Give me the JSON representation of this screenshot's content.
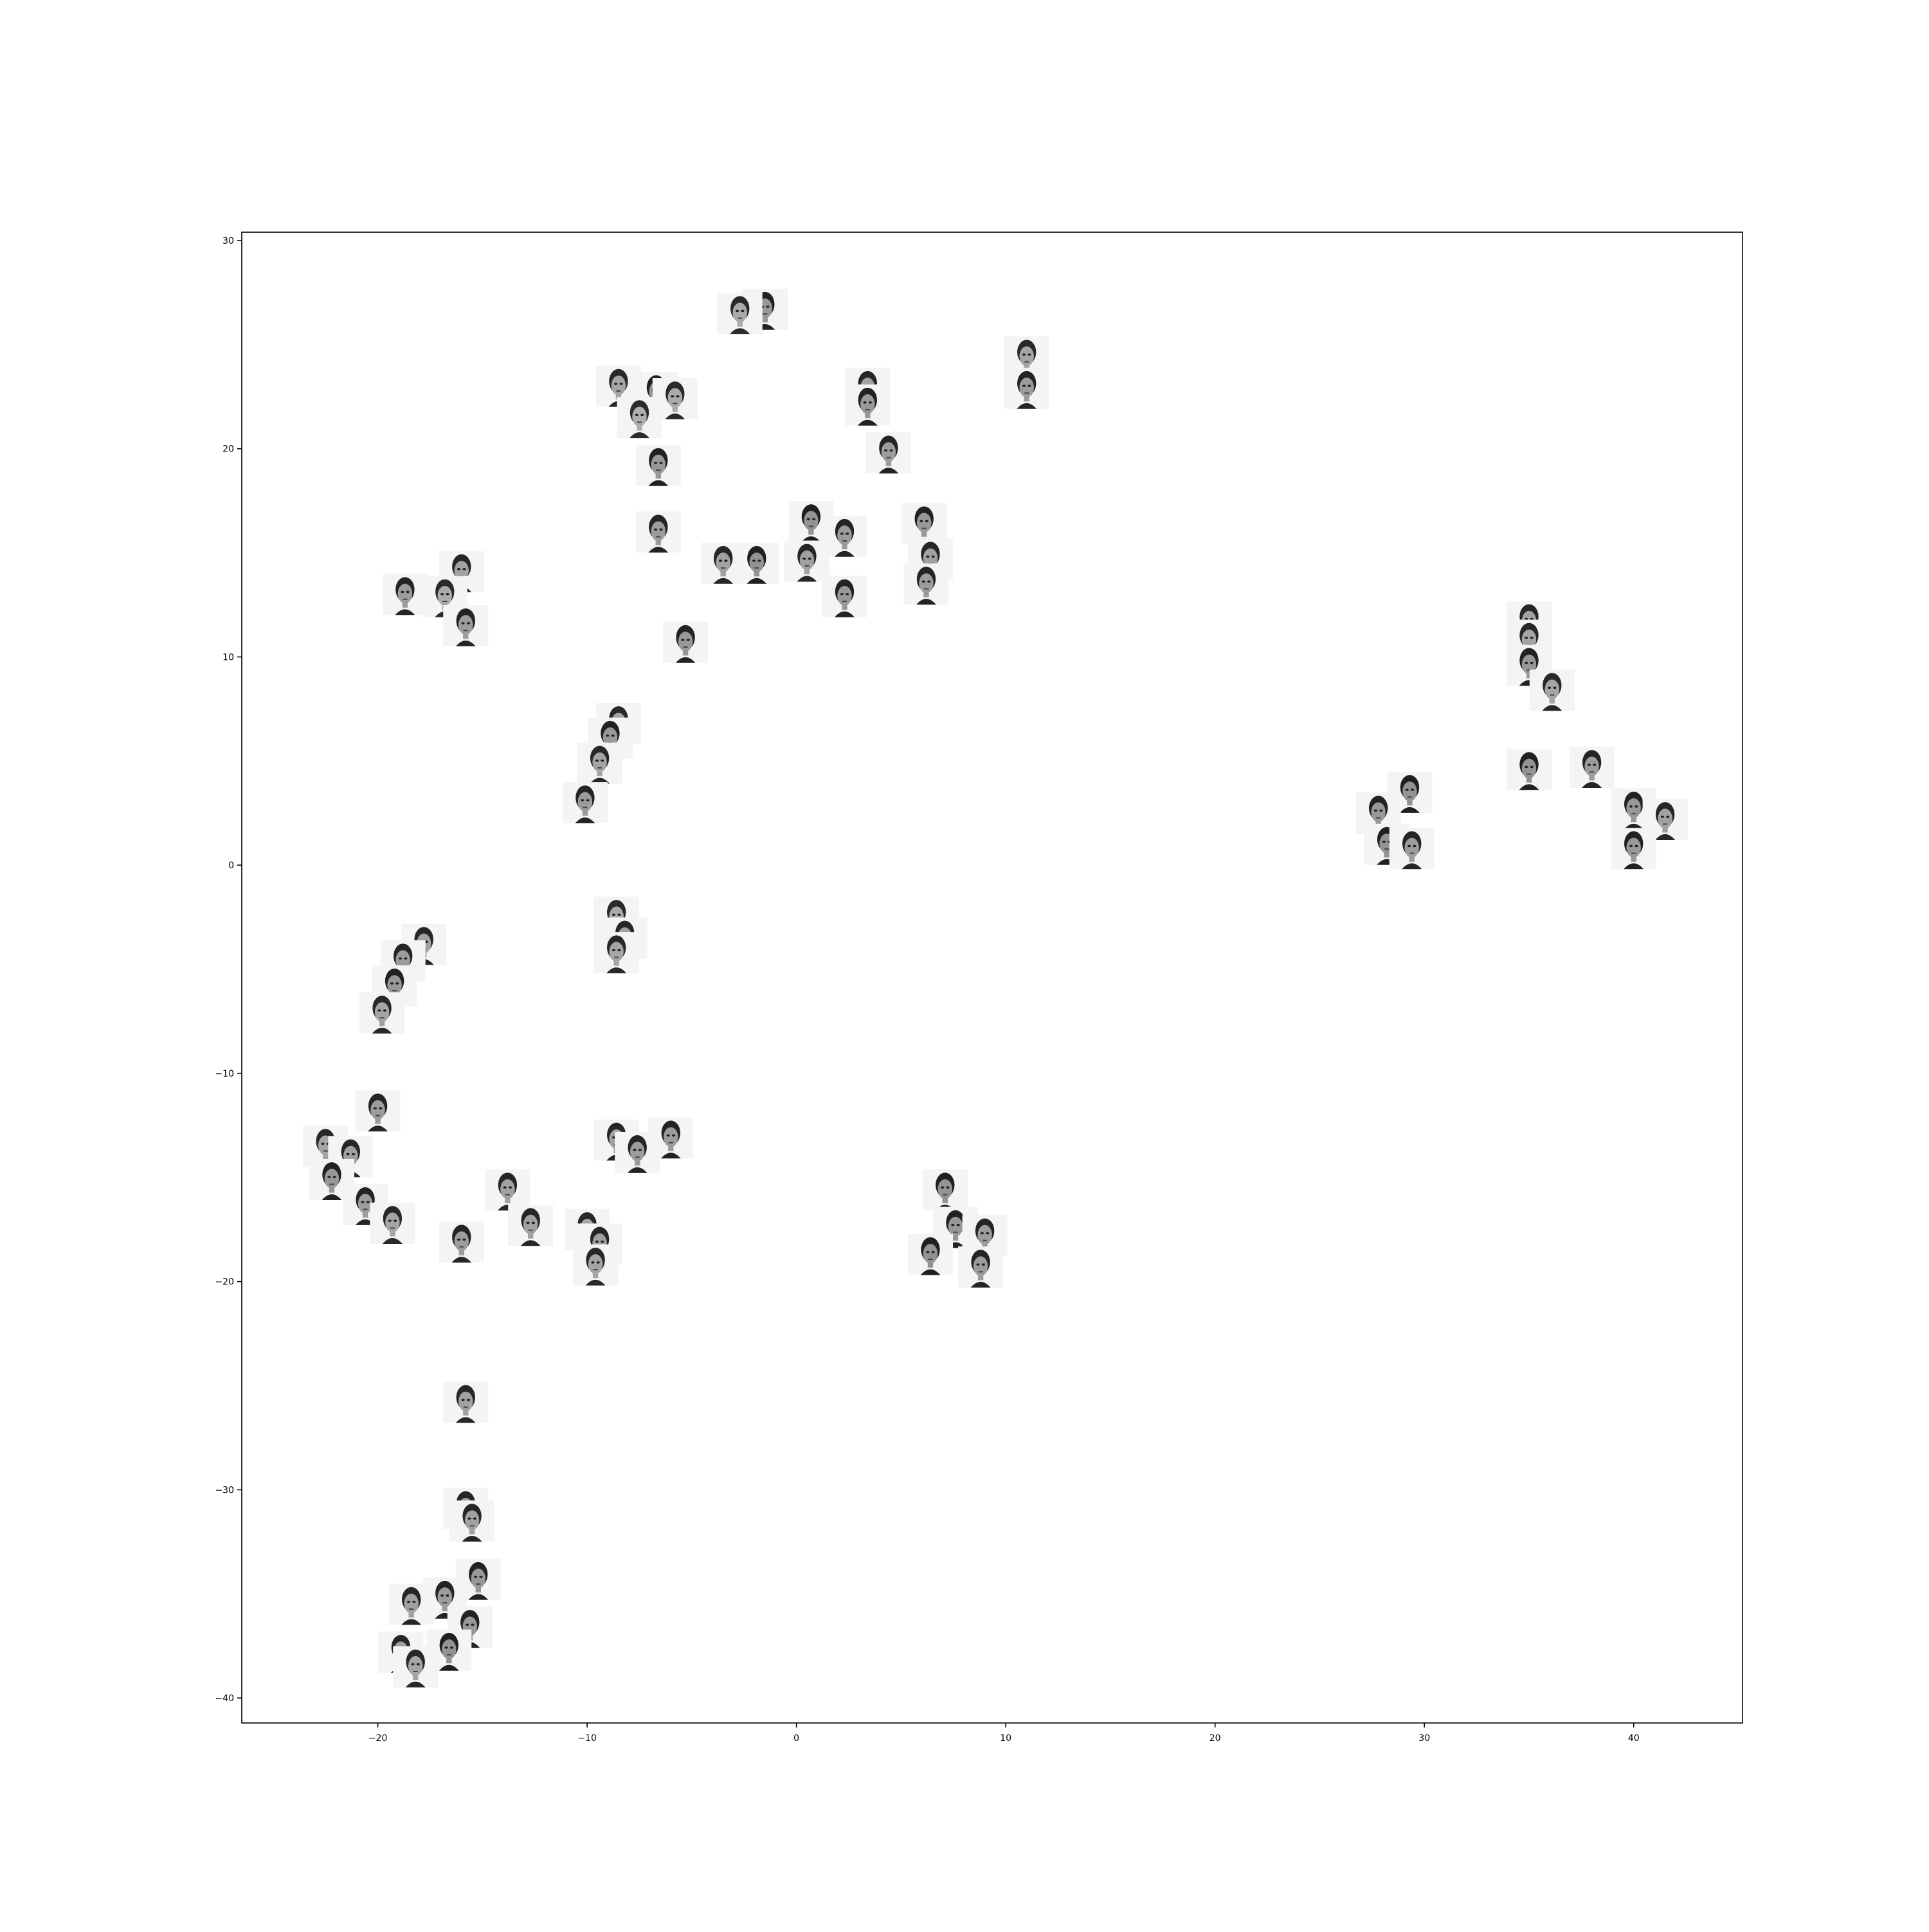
{
  "chart_data": {
    "type": "scatter",
    "marker": "face-thumbnail-image",
    "title": "",
    "xlabel": "",
    "ylabel": "",
    "xlim": [
      -26.5,
      45.2
    ],
    "ylim": [
      -41.2,
      30.4
    ],
    "xticks": [
      -20,
      -10,
      0,
      10,
      20,
      30,
      40
    ],
    "yticks": [
      -40,
      -30,
      -20,
      -10,
      0,
      10,
      20,
      30
    ],
    "xtick_labels": [
      "−20",
      "−10",
      "0",
      "10",
      "20",
      "30",
      "40"
    ],
    "ytick_labels": [
      "−40",
      "−30",
      "−20",
      "−10",
      "0",
      "10",
      "20",
      "30"
    ],
    "grid": false,
    "legend": "none",
    "points": [
      {
        "x": -1.5,
        "y": 26.7,
        "tone": 0.35
      },
      {
        "x": -2.7,
        "y": 26.5,
        "tone": 0.55
      },
      {
        "x": 11.0,
        "y": 24.4,
        "tone": 0.5
      },
      {
        "x": 11.0,
        "y": 22.9,
        "tone": 0.4
      },
      {
        "x": -8.5,
        "y": 23.0,
        "tone": 0.5
      },
      {
        "x": -6.7,
        "y": 22.7,
        "tone": 0.3
      },
      {
        "x": -5.8,
        "y": 22.4,
        "tone": 0.55
      },
      {
        "x": -7.5,
        "y": 21.5,
        "tone": 0.6
      },
      {
        "x": -6.6,
        "y": 19.2,
        "tone": 0.35
      },
      {
        "x": 3.4,
        "y": 22.9,
        "tone": 0.45
      },
      {
        "x": 3.4,
        "y": 22.1,
        "tone": 0.35
      },
      {
        "x": 4.4,
        "y": 19.8,
        "tone": 0.4
      },
      {
        "x": -6.6,
        "y": 16.0,
        "tone": 0.4
      },
      {
        "x": -3.5,
        "y": 14.5,
        "tone": 0.45
      },
      {
        "x": -1.9,
        "y": 14.5,
        "tone": 0.3
      },
      {
        "x": 0.7,
        "y": 16.5,
        "tone": 0.3
      },
      {
        "x": 2.3,
        "y": 15.8,
        "tone": 0.4
      },
      {
        "x": 0.5,
        "y": 14.6,
        "tone": 0.45
      },
      {
        "x": 2.3,
        "y": 12.9,
        "tone": 0.35
      },
      {
        "x": 6.1,
        "y": 16.4,
        "tone": 0.35
      },
      {
        "x": 6.4,
        "y": 14.7,
        "tone": 0.45
      },
      {
        "x": 6.2,
        "y": 13.5,
        "tone": 0.4
      },
      {
        "x": -16.0,
        "y": 14.1,
        "tone": 0.45
      },
      {
        "x": -18.7,
        "y": 13.0,
        "tone": 0.4
      },
      {
        "x": -16.8,
        "y": 12.9,
        "tone": 0.55
      },
      {
        "x": -15.8,
        "y": 11.5,
        "tone": 0.4
      },
      {
        "x": -5.3,
        "y": 10.7,
        "tone": 0.35
      },
      {
        "x": -8.5,
        "y": 6.8,
        "tone": 0.5
      },
      {
        "x": -8.9,
        "y": 6.1,
        "tone": 0.35
      },
      {
        "x": -9.4,
        "y": 4.9,
        "tone": 0.5
      },
      {
        "x": -10.1,
        "y": 3.0,
        "tone": 0.4
      },
      {
        "x": 35.0,
        "y": 11.7,
        "tone": 0.45
      },
      {
        "x": 35.0,
        "y": 10.8,
        "tone": 0.5
      },
      {
        "x": 35.0,
        "y": 9.6,
        "tone": 0.35
      },
      {
        "x": 36.1,
        "y": 8.4,
        "tone": 0.5
      },
      {
        "x": 35.0,
        "y": 4.6,
        "tone": 0.3
      },
      {
        "x": 38.0,
        "y": 4.7,
        "tone": 0.4
      },
      {
        "x": 40.0,
        "y": 2.7,
        "tone": 0.35
      },
      {
        "x": 41.5,
        "y": 2.2,
        "tone": 0.45
      },
      {
        "x": 40.0,
        "y": 0.8,
        "tone": 0.35
      },
      {
        "x": 29.3,
        "y": 3.5,
        "tone": 0.3
      },
      {
        "x": 27.8,
        "y": 2.5,
        "tone": 0.35
      },
      {
        "x": 28.2,
        "y": 1.0,
        "tone": 0.3
      },
      {
        "x": 29.4,
        "y": 0.8,
        "tone": 0.4
      },
      {
        "x": -8.6,
        "y": -2.5,
        "tone": 0.55
      },
      {
        "x": -8.2,
        "y": -3.5,
        "tone": 0.45
      },
      {
        "x": -8.6,
        "y": -4.2,
        "tone": 0.5
      },
      {
        "x": -17.8,
        "y": -3.8,
        "tone": 0.45
      },
      {
        "x": -18.8,
        "y": -4.6,
        "tone": 0.4
      },
      {
        "x": -19.2,
        "y": -5.8,
        "tone": 0.35
      },
      {
        "x": -19.8,
        "y": -7.1,
        "tone": 0.5
      },
      {
        "x": -20.0,
        "y": -11.8,
        "tone": 0.4
      },
      {
        "x": -22.5,
        "y": -13.5,
        "tone": 0.5
      },
      {
        "x": -21.3,
        "y": -14.0,
        "tone": 0.45
      },
      {
        "x": -22.2,
        "y": -15.1,
        "tone": 0.35
      },
      {
        "x": -20.6,
        "y": -16.3,
        "tone": 0.4
      },
      {
        "x": -19.3,
        "y": -17.2,
        "tone": 0.5
      },
      {
        "x": -8.6,
        "y": -13.2,
        "tone": 0.45
      },
      {
        "x": -7.6,
        "y": -13.8,
        "tone": 0.4
      },
      {
        "x": -6.0,
        "y": -13.1,
        "tone": 0.4
      },
      {
        "x": -13.8,
        "y": -15.6,
        "tone": 0.45
      },
      {
        "x": -12.7,
        "y": -17.3,
        "tone": 0.45
      },
      {
        "x": -10.0,
        "y": -17.5,
        "tone": 0.5
      },
      {
        "x": -9.4,
        "y": -18.2,
        "tone": 0.45
      },
      {
        "x": -9.6,
        "y": -19.2,
        "tone": 0.5
      },
      {
        "x": -16.0,
        "y": -18.1,
        "tone": 0.4
      },
      {
        "x": 7.1,
        "y": -15.6,
        "tone": 0.3
      },
      {
        "x": 7.6,
        "y": -17.4,
        "tone": 0.35
      },
      {
        "x": 9.0,
        "y": -17.8,
        "tone": 0.4
      },
      {
        "x": 6.4,
        "y": -18.7,
        "tone": 0.3
      },
      {
        "x": 8.8,
        "y": -19.3,
        "tone": 0.4
      },
      {
        "x": -15.8,
        "y": -25.8,
        "tone": 0.45
      },
      {
        "x": -15.8,
        "y": -30.9,
        "tone": 0.4
      },
      {
        "x": -15.5,
        "y": -31.5,
        "tone": 0.45
      },
      {
        "x": -15.2,
        "y": -34.3,
        "tone": 0.35
      },
      {
        "x": -16.8,
        "y": -35.2,
        "tone": 0.4
      },
      {
        "x": -18.4,
        "y": -35.5,
        "tone": 0.45
      },
      {
        "x": -15.6,
        "y": -36.6,
        "tone": 0.35
      },
      {
        "x": -16.6,
        "y": -37.7,
        "tone": 0.3
      },
      {
        "x": -18.9,
        "y": -37.8,
        "tone": 0.45
      },
      {
        "x": -18.2,
        "y": -38.5,
        "tone": 0.5
      }
    ]
  }
}
